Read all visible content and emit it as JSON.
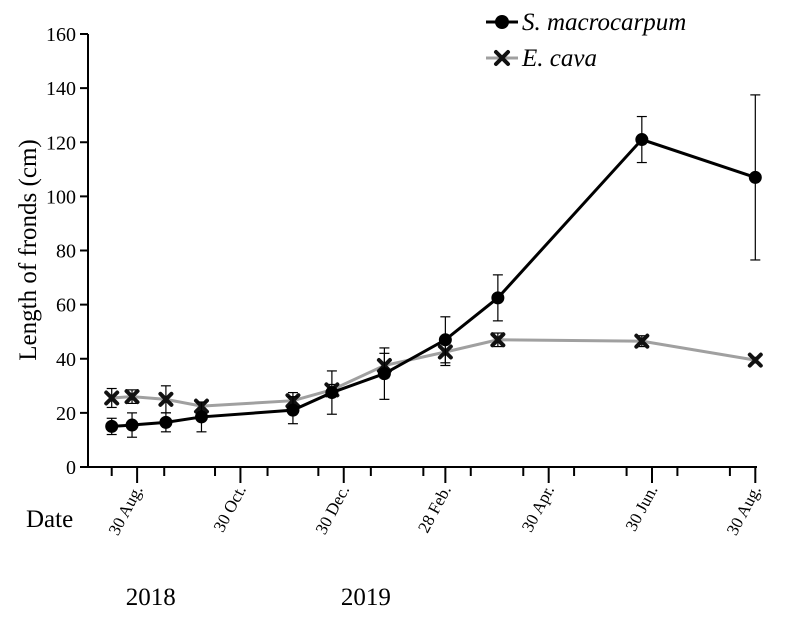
{
  "chart_data": {
    "type": "line",
    "ylabel": "Length of fronds (cm)",
    "xlabel": "Date",
    "ylim": [
      0,
      160
    ],
    "yticks": [
      0,
      20,
      40,
      60,
      80,
      100,
      120,
      140,
      160
    ],
    "xlim": [
      "2018-08-01",
      "2019-08-31"
    ],
    "xticks": [
      {
        "date": "2018-08-30",
        "label": "30 Aug."
      },
      {
        "date": "2018-10-30",
        "label": "30 Oct."
      },
      {
        "date": "2018-12-30",
        "label": "30 Dec."
      },
      {
        "date": "2019-02-28",
        "label": "28 Feb."
      },
      {
        "date": "2019-04-30",
        "label": "30 Apr."
      },
      {
        "date": "2019-06-30",
        "label": "30 Jun."
      },
      {
        "date": "2019-08-30",
        "label": "30 Aug."
      }
    ],
    "year_labels": [
      {
        "date": "2018-09-10",
        "label": "2018"
      },
      {
        "date": "2019-01-15",
        "label": "2019"
      }
    ],
    "legend_position": "top-right",
    "series": [
      {
        "name": "S. macrocarpum",
        "color": "#000000",
        "marker": "circle",
        "points": [
          {
            "date": "2018-08-15",
            "y": 15.0,
            "err": 3.0
          },
          {
            "date": "2018-08-27",
            "y": 15.5,
            "err": 4.5
          },
          {
            "date": "2018-09-16",
            "y": 16.5,
            "err": 3.5
          },
          {
            "date": "2018-10-07",
            "y": 18.5,
            "err": 5.5
          },
          {
            "date": "2018-11-30",
            "y": 21.0,
            "err": 5.0
          },
          {
            "date": "2018-12-23",
            "y": 27.5,
            "err": 8.0
          },
          {
            "date": "2019-01-23",
            "y": 34.5,
            "err": 9.5
          },
          {
            "date": "2019-02-28",
            "y": 47.0,
            "err": 8.5
          },
          {
            "date": "2019-03-31",
            "y": 62.5,
            "err": 8.5
          },
          {
            "date": "2019-06-24",
            "y": 121.0,
            "err": 8.5
          },
          {
            "date": "2019-08-30",
            "y": 107.0,
            "err": 30.5
          }
        ]
      },
      {
        "name": "E. cava",
        "color": "#a0a0a0",
        "marker": "x",
        "points": [
          {
            "date": "2018-08-15",
            "y": 25.5,
            "err": 3.5
          },
          {
            "date": "2018-08-27",
            "y": 26.0,
            "err": 2.5
          },
          {
            "date": "2018-09-16",
            "y": 25.0,
            "err": 5.0
          },
          {
            "date": "2018-10-07",
            "y": 22.5,
            "err": 1.5
          },
          {
            "date": "2018-11-30",
            "y": 24.5,
            "err": 3.0
          },
          {
            "date": "2018-12-23",
            "y": 28.5,
            "err": 2.0
          },
          {
            "date": "2019-01-23",
            "y": 37.5,
            "err": 4.5
          },
          {
            "date": "2019-02-28",
            "y": 42.5,
            "err": 5.0
          },
          {
            "date": "2019-03-31",
            "y": 47.0,
            "err": 2.5
          },
          {
            "date": "2019-06-24",
            "y": 46.5,
            "err": 2.0
          },
          {
            "date": "2019-08-30",
            "y": 39.5,
            "err": 1.0
          }
        ]
      }
    ]
  }
}
